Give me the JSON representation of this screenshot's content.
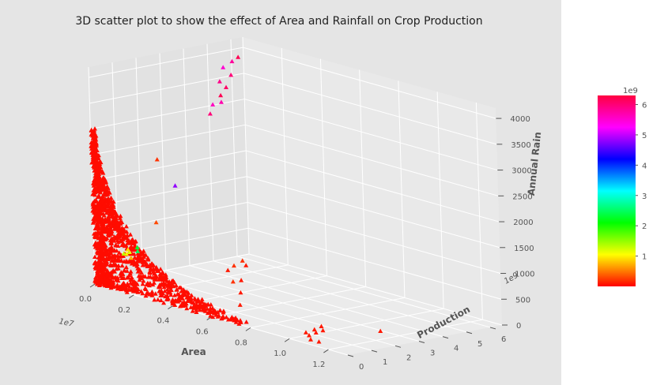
{
  "chart_data": {
    "type": "scatter",
    "title": "3D scatter plot to show the effect of Area and Rainfall on Crop Production",
    "x_axis": {
      "label": "Area",
      "ticks": [
        "0.0",
        "0.2",
        "0.4",
        "0.6",
        "0.8",
        "1.0",
        "1.2"
      ],
      "tick_values": [
        0.0,
        0.2,
        0.4,
        0.6,
        0.8,
        1.0,
        1.2
      ],
      "offset": "1e7",
      "range": [
        0,
        1.3
      ]
    },
    "y_axis": {
      "label": "Production",
      "ticks": [
        "0",
        "1",
        "2",
        "3",
        "4",
        "5",
        "6"
      ],
      "tick_values": [
        0,
        1,
        2,
        3,
        4,
        5,
        6
      ],
      "offset": "1e9",
      "range": [
        0,
        6.5
      ]
    },
    "z_axis": {
      "label": "Annual Rain",
      "ticks": [
        "0",
        "500",
        "1000",
        "1500",
        "2000",
        "2500",
        "3000",
        "3500",
        "4000"
      ],
      "tick_values": [
        0,
        500,
        1000,
        1500,
        2000,
        2500,
        3000,
        3500,
        4000
      ],
      "range": [
        0,
        4200
      ]
    },
    "colorbar": {
      "ticks": [
        "1",
        "2",
        "3",
        "4",
        "5",
        "6"
      ],
      "tick_values": [
        1,
        2,
        3,
        4,
        5,
        6
      ],
      "offset": "1e9",
      "range": [
        0,
        6.3
      ],
      "colormap": "gist_rainbow_r",
      "colormap_stops": [
        "#ff0000",
        "#ffff00",
        "#00ff00",
        "#00ffff",
        "#0000ff",
        "#ff00ff",
        "#ff0040"
      ]
    },
    "marker": "triangle",
    "grid": true,
    "background_color": "#e5e5e5",
    "points": [
      {
        "x": 0.01,
        "y": 6.2,
        "z": 3850,
        "c": 6.2
      },
      {
        "x": 0.015,
        "y": 5.9,
        "z": 3800,
        "c": 5.8
      },
      {
        "x": 0.005,
        "y": 5.6,
        "z": 3700,
        "c": 5.5
      },
      {
        "x": 0.02,
        "y": 5.8,
        "z": 3550,
        "c": 6.0
      },
      {
        "x": 0.01,
        "y": 5.4,
        "z": 3450,
        "c": 5.9
      },
      {
        "x": 0.03,
        "y": 5.5,
        "z": 3350,
        "c": 6.1
      },
      {
        "x": 0.02,
        "y": 5.0,
        "z": 3050,
        "c": 5.6
      },
      {
        "x": 0.04,
        "y": 5.2,
        "z": 3100,
        "c": 5.7
      },
      {
        "x": 0.03,
        "y": 4.8,
        "z": 2900,
        "c": 6.0
      },
      {
        "x": 0.05,
        "y": 5.1,
        "z": 3250,
        "c": 6.2
      },
      {
        "x": 0.06,
        "y": 3.0,
        "z": 1700,
        "c": 4.8
      },
      {
        "x": 0.08,
        "y": 2.0,
        "z": 1100,
        "c": 0.3
      },
      {
        "x": 0.02,
        "y": 2.6,
        "z": 2200,
        "c": 0.2
      },
      {
        "x": 0.12,
        "y": 0.85,
        "z": 760,
        "c": 2.3
      },
      {
        "x": 0.14,
        "y": 0.7,
        "z": 720,
        "c": 2.5
      },
      {
        "x": 0.11,
        "y": 0.6,
        "z": 680,
        "c": 1.2
      },
      {
        "x": 0.1,
        "y": 0.55,
        "z": 640,
        "c": 1.0
      },
      {
        "x": 0.09,
        "y": 0.7,
        "z": 700,
        "c": 0.9
      },
      {
        "x": 0.13,
        "y": 0.5,
        "z": 600,
        "c": 0.7
      },
      {
        "x": 0.08,
        "y": 0.6,
        "z": 620,
        "c": 1.3
      },
      {
        "x": 0.6,
        "y": 1.0,
        "z": 900,
        "c": 0.2
      },
      {
        "x": 0.62,
        "y": 1.2,
        "z": 1000,
        "c": 0.2
      },
      {
        "x": 0.65,
        "y": 1.1,
        "z": 950,
        "c": 0.1
      },
      {
        "x": 0.58,
        "y": 0.9,
        "z": 800,
        "c": 0.1
      },
      {
        "x": 0.66,
        "y": 0.8,
        "z": 700,
        "c": 0.1
      },
      {
        "x": 0.63,
        "y": 0.7,
        "z": 650,
        "c": 0.2
      },
      {
        "x": 0.68,
        "y": 0.6,
        "z": 500,
        "c": 0.1
      },
      {
        "x": 0.7,
        "y": 0.4,
        "z": 300,
        "c": 0.1
      },
      {
        "x": 1.1,
        "y": 0.25,
        "z": 260,
        "c": 0.1
      },
      {
        "x": 1.12,
        "y": 0.15,
        "z": 230,
        "c": 0.1
      },
      {
        "x": 1.08,
        "y": 0.05,
        "z": 200,
        "c": 0.1
      },
      {
        "x": 1.15,
        "y": 0.2,
        "z": 300,
        "c": 0.1
      },
      {
        "x": 1.09,
        "y": 0.1,
        "z": 150,
        "c": 0.1
      },
      {
        "x": 1.13,
        "y": 0.3,
        "z": 350,
        "c": 0.1
      },
      {
        "x": 1.11,
        "y": 0.0,
        "z": 100,
        "c": 0.1
      },
      {
        "x": 1.14,
        "y": 0.1,
        "z": 80,
        "c": 0.1
      },
      {
        "x": 1.25,
        "y": 1.8,
        "z": 250,
        "c": 0.1
      }
    ],
    "dense_region": {
      "x_range": [
        0.0,
        0.75
      ],
      "y_range": [
        0.0,
        0.5
      ],
      "z_range": [
        0,
        3000
      ],
      "color_value": 0.05
    }
  }
}
